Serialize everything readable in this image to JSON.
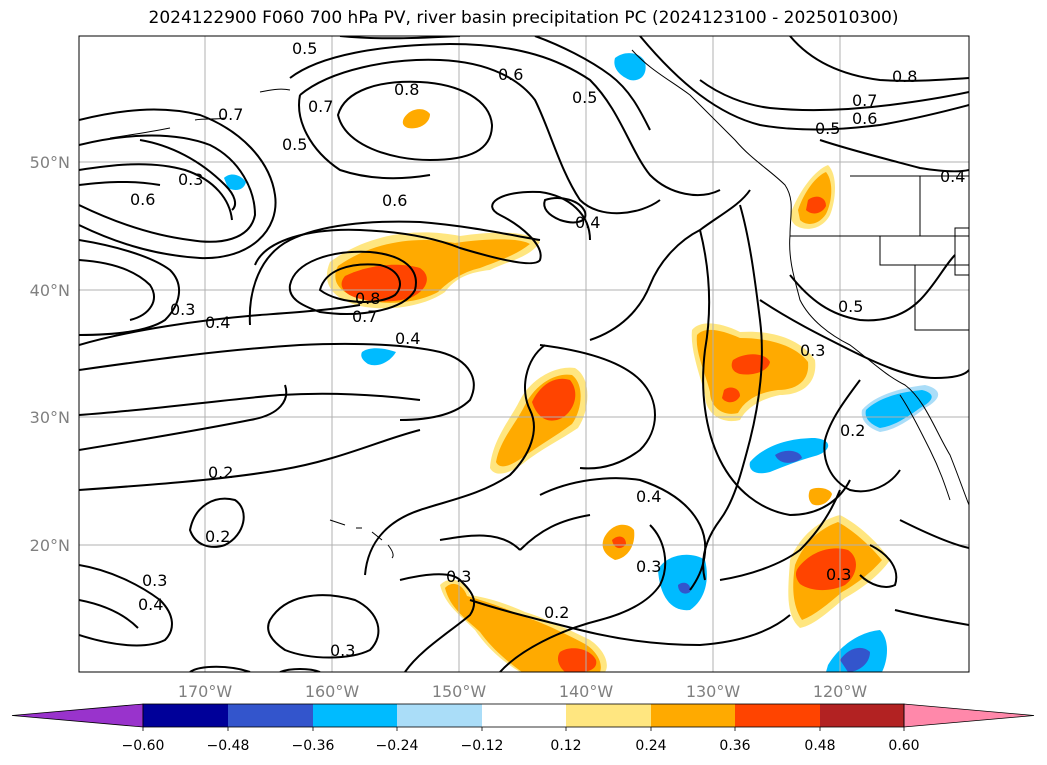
{
  "title": "2024122900 F060 700 hPa PV, river basin precipitation PC (2024123100 - 2025010300)",
  "axes": {
    "lat_labels": [
      "50°N",
      "40°N",
      "30°N",
      "20°N"
    ],
    "lon_labels": [
      "170°W",
      "160°W",
      "150°W",
      "140°W",
      "130°W",
      "120°W"
    ]
  },
  "colorbar": {
    "colors": [
      "#9933cc",
      "#000099",
      "#3355cc",
      "#00bbff",
      "#aaddf8",
      "#ffffff",
      "#ffe680",
      "#ffaa00",
      "#ff4400",
      "#b22222",
      "#ff88aa"
    ],
    "ticks": [
      "−0.60",
      "−0.48",
      "−0.36",
      "−0.24",
      "−0.12",
      "0.12",
      "0.24",
      "0.36",
      "0.48",
      "0.60"
    ]
  },
  "contour_labels": [
    "0.5",
    "0.8",
    "0.6",
    "0.5",
    "0.8",
    "0.7",
    "0.6",
    "0.7",
    "0.5",
    "0.4",
    "0.7",
    "0.5",
    "0.3",
    "0.6",
    "0.6",
    "0.4",
    "0.3",
    "0.4",
    "0.8",
    "0.7",
    "0.4",
    "0.5",
    "0.3",
    "0.2",
    "0.2",
    "0.2",
    "0.4",
    "0.3",
    "0.3",
    "0.3",
    "0.4",
    "0.2",
    "0.3",
    "0.3"
  ]
}
